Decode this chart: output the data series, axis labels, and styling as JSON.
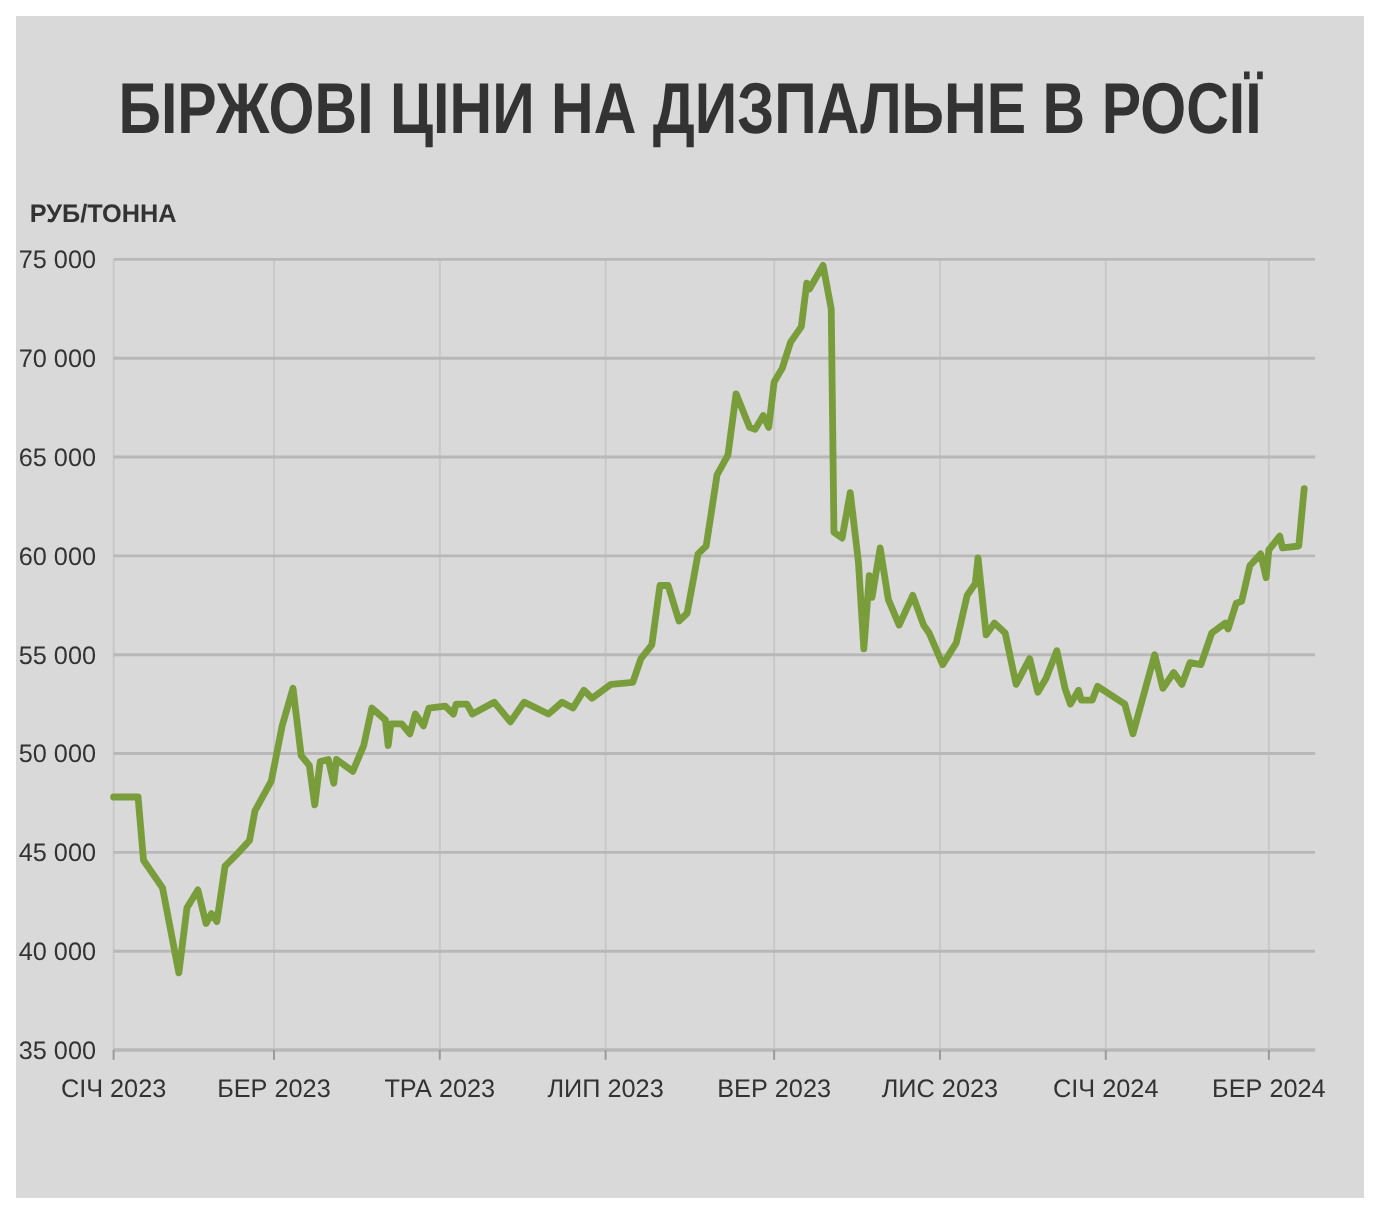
{
  "chart_data": {
    "type": "line",
    "title": "БІРЖОВІ ЦІНИ НА ДИЗПАЛЬНЕ В РОСІЇ",
    "ylabel": "РУБ/ТОННА",
    "x": [
      "2023-01-01",
      "2023-01-10",
      "2023-01-12",
      "2023-01-19",
      "2023-01-25",
      "2023-01-28",
      "2023-02-01",
      "2023-02-04",
      "2023-02-06",
      "2023-02-08",
      "2023-02-11",
      "2023-02-16",
      "2023-02-20",
      "2023-02-22",
      "2023-02-28",
      "2023-03-04",
      "2023-03-08",
      "2023-03-11",
      "2023-03-14",
      "2023-03-16",
      "2023-03-18",
      "2023-03-21",
      "2023-03-23",
      "2023-03-24",
      "2023-03-30",
      "2023-04-03",
      "2023-04-06",
      "2023-04-11",
      "2023-04-12",
      "2023-04-13",
      "2023-04-17",
      "2023-04-20",
      "2023-04-22",
      "2023-04-25",
      "2023-04-27",
      "2023-05-03",
      "2023-05-06",
      "2023-05-07",
      "2023-05-11",
      "2023-05-13",
      "2023-05-21",
      "2023-05-27",
      "2023-06-01",
      "2023-06-10",
      "2023-06-15",
      "2023-06-19",
      "2023-06-23",
      "2023-06-26",
      "2023-07-03",
      "2023-07-11",
      "2023-07-14",
      "2023-07-18",
      "2023-07-21",
      "2023-07-24",
      "2023-07-28",
      "2023-07-31",
      "2023-08-04",
      "2023-08-07",
      "2023-08-11",
      "2023-08-15",
      "2023-08-18",
      "2023-08-23",
      "2023-08-25",
      "2023-08-28",
      "2023-08-30",
      "2023-09-01",
      "2023-09-04",
      "2023-09-07",
      "2023-09-11",
      "2023-09-13",
      "2023-09-14",
      "2023-09-19",
      "2023-09-22",
      "2023-09-23",
      "2023-09-26",
      "2023-09-29",
      "2023-10-02",
      "2023-10-04",
      "2023-10-06",
      "2023-10-07",
      "2023-10-10",
      "2023-10-13",
      "2023-10-17",
      "2023-10-22",
      "2023-10-26",
      "2023-10-28",
      "2023-11-02",
      "2023-11-07",
      "2023-11-11",
      "2023-11-14",
      "2023-11-15",
      "2023-11-18",
      "2023-11-21",
      "2023-11-25",
      "2023-11-29",
      "2023-12-04",
      "2023-12-07",
      "2023-12-10",
      "2023-12-14",
      "2023-12-17",
      "2023-12-19",
      "2023-12-22",
      "2023-12-23",
      "2023-12-27",
      "2023-12-29",
      "2024-01-08",
      "2024-01-11",
      "2024-01-14",
      "2024-01-19",
      "2024-01-22",
      "2024-01-26",
      "2024-01-29",
      "2024-02-01",
      "2024-02-05",
      "2024-02-09",
      "2024-02-14",
      "2024-02-15",
      "2024-02-18",
      "2024-02-20",
      "2024-02-23",
      "2024-02-27",
      "2024-02-29",
      "2024-03-01",
      "2024-03-05",
      "2024-03-06",
      "2024-03-12",
      "2024-03-14"
    ],
    "series": [
      {
        "color": "#7a9d3c",
        "values": [
          47800,
          47800,
          44600,
          43200,
          38900,
          42200,
          43100,
          41400,
          41900,
          41500,
          44300,
          45000,
          45600,
          47100,
          48600,
          51400,
          53300,
          49900,
          49400,
          47400,
          49600,
          49700,
          48500,
          49700,
          49100,
          50400,
          52300,
          51700,
          50400,
          51500,
          51500,
          51000,
          52000,
          51400,
          52300,
          52400,
          52000,
          52500,
          52500,
          52000,
          52600,
          51600,
          52600,
          52000,
          52600,
          52300,
          53200,
          52800,
          53500,
          53600,
          54800,
          55500,
          58500,
          58500,
          56700,
          57100,
          60100,
          60500,
          64100,
          65100,
          68200,
          66500,
          66400,
          67100,
          66500,
          68800,
          69500,
          70800,
          71600,
          73800,
          73500,
          74700,
          72500,
          61200,
          60900,
          63200,
          59700,
          55300,
          59000,
          57900,
          60400,
          57800,
          56500,
          58000,
          56500,
          56100,
          54500,
          55600,
          58000,
          58600,
          59900,
          56000,
          56600,
          56100,
          53500,
          54800,
          53100,
          53800,
          55200,
          53300,
          52500,
          53200,
          52700,
          52700,
          53400,
          52500,
          51000,
          52500,
          55000,
          53300,
          54100,
          53500,
          54600,
          54500,
          56100,
          56600,
          56300,
          57600,
          57700,
          59500,
          60100,
          58900,
          60300,
          61000,
          60400,
          60500,
          63400
        ]
      }
    ],
    "xlim": [
      "2023-01-01",
      "2024-03-18"
    ],
    "xticks": [
      {
        "value": "2023-01-01",
        "label": "СІЧ 2023"
      },
      {
        "value": "2023-03-01",
        "label": "БЕР 2023"
      },
      {
        "value": "2023-05-01",
        "label": "ТРА 2023"
      },
      {
        "value": "2023-07-01",
        "label": "ЛИП 2023"
      },
      {
        "value": "2023-09-01",
        "label": "ВЕР 2023"
      },
      {
        "value": "2023-11-01",
        "label": "ЛИС 2023"
      },
      {
        "value": "2024-01-01",
        "label": "СІЧ 2024"
      },
      {
        "value": "2024-03-01",
        "label": "БЕР 2024"
      }
    ],
    "ylim": [
      35000,
      75000
    ],
    "yticks": [
      {
        "value": 35000,
        "label": "35 000"
      },
      {
        "value": 40000,
        "label": "40 000"
      },
      {
        "value": 45000,
        "label": "45 000"
      },
      {
        "value": 50000,
        "label": "50 000"
      },
      {
        "value": 55000,
        "label": "55 000"
      },
      {
        "value": 60000,
        "label": "60 000"
      },
      {
        "value": 65000,
        "label": "65 000"
      },
      {
        "value": 70000,
        "label": "70 000"
      },
      {
        "value": 75000,
        "label": "75 000"
      }
    ],
    "grid": true,
    "line_style": "solid",
    "marker": "none"
  }
}
